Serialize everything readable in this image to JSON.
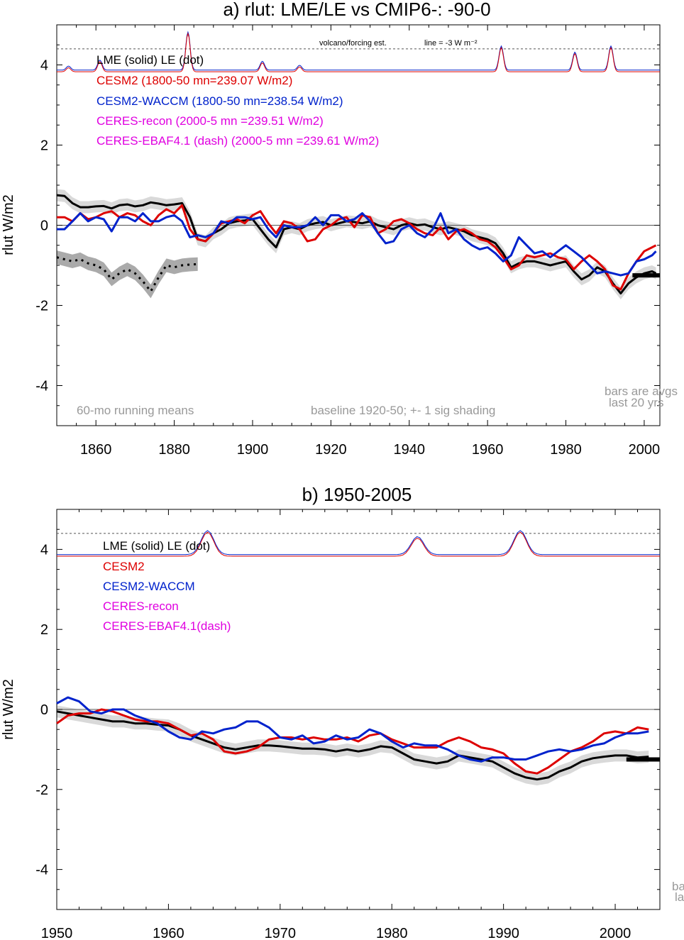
{
  "colors": {
    "lme": "#000000",
    "cesm2": "#dd0000",
    "waccm": "#0022cc",
    "ceres": "#e000e0",
    "shade": "#d9d9d9",
    "note": "#999999"
  },
  "chart_data": [
    {
      "type": "line",
      "title": "a) rlut: LME/LE vs CMIP6-: -90-0",
      "ylabel": "rlut W/m2",
      "xlim": [
        1850,
        2004
      ],
      "ylim": [
        -5,
        5
      ],
      "xticks": [
        1860,
        1880,
        1900,
        1920,
        1940,
        1960,
        1980,
        2000
      ],
      "yticks": [
        -4,
        -2,
        0,
        2,
        4
      ],
      "annotations": {
        "volcano": "volcano/forcing est.",
        "line_ref": "line = -3 W m⁻²",
        "running": "60-mo running means",
        "baseline": "baseline 1920-50; +- 1 sig shading",
        "bars1": "bars are avgs",
        "bars2": "last 20 yrs"
      },
      "legend": {
        "lme_le": "LME (solid)   LE (dot)",
        "cesm2": "CESM2 (1800-50 mn=239.07 W/m2)",
        "waccm": "CESM2-WACCM (1800-50 mn=238.54 W/m2)",
        "ceres": "CERES-recon (2000-5 mn =239.51 W/m2)",
        "ebaf": "CERES-EBAF4.1 (dash) (2000-5 mn =239.61 W/m2)"
      },
      "dotted_ref": 4.4,
      "series": [
        {
          "name": "LME",
          "color": "lme",
          "x": [
            1850,
            1852,
            1854,
            1856,
            1858,
            1860,
            1862,
            1864,
            1866,
            1868,
            1870,
            1872,
            1874,
            1876,
            1878,
            1880,
            1882,
            1884,
            1886,
            1888,
            1890,
            1892,
            1894,
            1896,
            1898,
            1900,
            1902,
            1904,
            1906,
            1908,
            1910,
            1912,
            1914,
            1916,
            1918,
            1920,
            1922,
            1924,
            1926,
            1928,
            1930,
            1932,
            1934,
            1936,
            1938,
            1940,
            1942,
            1944,
            1946,
            1948,
            1950,
            1952,
            1954,
            1956,
            1958,
            1960,
            1962,
            1964,
            1966,
            1968,
            1970,
            1972,
            1974,
            1976,
            1978,
            1980,
            1982,
            1984,
            1986,
            1988,
            1990,
            1992,
            1994,
            1996,
            1998,
            2000,
            2002,
            2003
          ],
          "y": [
            0.75,
            0.73,
            0.55,
            0.45,
            0.45,
            0.47,
            0.48,
            0.42,
            0.5,
            0.52,
            0.47,
            0.5,
            0.57,
            0.54,
            0.5,
            0.52,
            0.55,
            0.2,
            -0.35,
            -0.4,
            -0.2,
            -0.1,
            0.05,
            0.1,
            0.12,
            0.15,
            -0.1,
            -0.35,
            -0.55,
            -0.1,
            -0.05,
            -0.1,
            0.0,
            0.05,
            0.08,
            0.0,
            0.05,
            0.1,
            0.08,
            0.05,
            0.1,
            0.0,
            -0.05,
            -0.1,
            0.0,
            0.05,
            0.0,
            0.02,
            -0.05,
            -0.1,
            -0.05,
            -0.1,
            -0.15,
            -0.25,
            -0.3,
            -0.35,
            -0.45,
            -0.7,
            -1.05,
            -0.95,
            -0.9,
            -0.9,
            -0.95,
            -1.0,
            -0.95,
            -0.9,
            -1.15,
            -1.35,
            -1.25,
            -1.05,
            -1.15,
            -1.45,
            -1.7,
            -1.45,
            -1.3,
            -1.2,
            -1.15,
            -1.2
          ]
        },
        {
          "name": "LE",
          "color": "lme",
          "dotted": true,
          "x": [
            1850,
            1852,
            1854,
            1856,
            1858,
            1860,
            1862,
            1864,
            1866,
            1868,
            1870,
            1872,
            1874,
            1876,
            1878,
            1880,
            1882,
            1884,
            1886
          ],
          "y": [
            -0.8,
            -0.85,
            -0.9,
            -0.85,
            -0.95,
            -1.0,
            -1.1,
            -1.35,
            -1.2,
            -1.1,
            -1.2,
            -1.4,
            -1.65,
            -1.3,
            -1.0,
            -1.05,
            -1.0,
            -0.98,
            -0.97
          ]
        },
        {
          "name": "CESM2",
          "color": "cesm2",
          "x": [
            1850,
            1852,
            1854,
            1856,
            1858,
            1860,
            1862,
            1864,
            1866,
            1868,
            1870,
            1872,
            1874,
            1876,
            1878,
            1880,
            1882,
            1884,
            1886,
            1888,
            1890,
            1892,
            1894,
            1896,
            1898,
            1900,
            1902,
            1904,
            1906,
            1908,
            1910,
            1912,
            1914,
            1916,
            1918,
            1920,
            1922,
            1924,
            1926,
            1928,
            1930,
            1932,
            1934,
            1936,
            1938,
            1940,
            1942,
            1944,
            1946,
            1948,
            1950,
            1952,
            1954,
            1956,
            1958,
            1960,
            1962,
            1964,
            1966,
            1968,
            1970,
            1972,
            1974,
            1976,
            1978,
            1980,
            1982,
            1984,
            1986,
            1988,
            1990,
            1992,
            1994,
            1996,
            1998,
            2000,
            2002,
            2003
          ],
          "y": [
            0.2,
            0.2,
            0.1,
            0.3,
            0.15,
            0.2,
            0.3,
            0.35,
            0.2,
            0.3,
            0.25,
            0.1,
            0.0,
            0.25,
            0.4,
            0.3,
            0.5,
            -0.1,
            -0.35,
            -0.4,
            -0.2,
            0.05,
            0.1,
            0.15,
            0.05,
            0.25,
            0.35,
            0.05,
            -0.2,
            0.1,
            0.05,
            -0.1,
            -0.4,
            -0.35,
            -0.1,
            0.0,
            0.15,
            0.2,
            -0.05,
            0.25,
            0.2,
            -0.2,
            -0.1,
            0.1,
            0.15,
            0.05,
            -0.1,
            -0.2,
            -0.25,
            -0.05,
            -0.35,
            -0.15,
            -0.1,
            -0.2,
            -0.35,
            -0.4,
            -0.55,
            -0.8,
            -1.1,
            -1.0,
            -0.75,
            -0.8,
            -0.75,
            -0.7,
            -0.8,
            -0.85,
            -1.1,
            -0.9,
            -0.75,
            -0.9,
            -1.1,
            -1.5,
            -1.6,
            -1.2,
            -0.9,
            -0.65,
            -0.55,
            -0.5
          ]
        },
        {
          "name": "CESM2-WACCM",
          "color": "waccm",
          "x": [
            1850,
            1852,
            1854,
            1856,
            1858,
            1860,
            1862,
            1864,
            1866,
            1868,
            1870,
            1872,
            1874,
            1876,
            1878,
            1880,
            1882,
            1884,
            1886,
            1888,
            1890,
            1892,
            1894,
            1896,
            1898,
            1900,
            1902,
            1904,
            1906,
            1908,
            1910,
            1912,
            1914,
            1916,
            1918,
            1920,
            1922,
            1924,
            1926,
            1928,
            1930,
            1932,
            1934,
            1936,
            1938,
            1940,
            1942,
            1944,
            1946,
            1948,
            1950,
            1952,
            1954,
            1956,
            1958,
            1960,
            1962,
            1964,
            1966,
            1968,
            1970,
            1972,
            1974,
            1976,
            1978,
            1980,
            1982,
            1984,
            1986,
            1988,
            1990,
            1992,
            1994,
            1996,
            1998,
            2000,
            2002,
            2003
          ],
          "y": [
            -0.1,
            -0.1,
            0.1,
            0.3,
            0.1,
            0.2,
            0.15,
            -0.15,
            0.2,
            0.2,
            0.1,
            0.3,
            0.1,
            0.1,
            0.2,
            0.25,
            0.1,
            -0.3,
            -0.25,
            -0.3,
            -0.2,
            0.1,
            0.05,
            0.2,
            0.2,
            0.15,
            0.2,
            -0.1,
            -0.3,
            0.0,
            -0.05,
            -0.05,
            0.0,
            0.2,
            0.0,
            0.25,
            0.25,
            0.1,
            0.15,
            0.3,
            0.1,
            -0.2,
            -0.45,
            -0.4,
            -0.1,
            0.0,
            -0.2,
            -0.3,
            -0.1,
            0.3,
            -0.2,
            -0.1,
            -0.35,
            -0.5,
            -0.6,
            -0.55,
            -0.7,
            -0.9,
            -0.75,
            -0.3,
            -0.5,
            -0.7,
            -0.65,
            -0.8,
            -0.65,
            -0.5,
            -0.65,
            -0.8,
            -1.0,
            -1.2,
            -1.15,
            -1.2,
            -1.25,
            -1.2,
            -0.9,
            -0.85,
            -0.75,
            -0.65
          ]
        }
      ],
      "bars": [
        {
          "color": "lme",
          "x0": 1997,
          "x1": 2004,
          "y": -1.25
        }
      ]
    },
    {
      "type": "line",
      "title": "b) 1950-2005",
      "ylabel": "rlut W/m2",
      "xlim": [
        1950,
        2004
      ],
      "ylim": [
        -5,
        5
      ],
      "xticks": [
        1950,
        1960,
        1970,
        1980,
        1990,
        2000
      ],
      "yticks": [
        -4,
        -2,
        0,
        2,
        4
      ],
      "annotations": {
        "bars1": "ba",
        "bars2": "la"
      },
      "legend": {
        "lme_le": "LME (solid)      LE (dot)",
        "cesm2": "CESM2",
        "waccm": "CESM2-WACCM",
        "ceres": "CERES-recon",
        "ebaf": "CERES-EBAF4.1(dash)"
      },
      "dotted_ref": 4.4,
      "series": [
        {
          "name": "LME",
          "color": "lme",
          "x": [
            1950,
            1951,
            1952,
            1953,
            1954,
            1955,
            1956,
            1957,
            1958,
            1959,
            1960,
            1961,
            1962,
            1963,
            1964,
            1965,
            1966,
            1967,
            1968,
            1969,
            1970,
            1971,
            1972,
            1973,
            1974,
            1975,
            1976,
            1977,
            1978,
            1979,
            1980,
            1981,
            1982,
            1983,
            1984,
            1985,
            1986,
            1987,
            1988,
            1989,
            1990,
            1991,
            1992,
            1993,
            1994,
            1995,
            1996,
            1997,
            1998,
            1999,
            2000,
            2001,
            2002,
            2003
          ],
          "y": [
            -0.05,
            -0.1,
            -0.15,
            -0.2,
            -0.25,
            -0.3,
            -0.3,
            -0.35,
            -0.35,
            -0.38,
            -0.4,
            -0.5,
            -0.65,
            -0.75,
            -0.85,
            -0.95,
            -1.0,
            -0.95,
            -0.9,
            -0.9,
            -0.92,
            -0.95,
            -0.98,
            -0.98,
            -1.0,
            -1.05,
            -1.0,
            -1.05,
            -1.0,
            -0.92,
            -0.95,
            -1.1,
            -1.25,
            -1.3,
            -1.35,
            -1.3,
            -1.15,
            -1.2,
            -1.25,
            -1.3,
            -1.45,
            -1.6,
            -1.7,
            -1.75,
            -1.7,
            -1.55,
            -1.45,
            -1.3,
            -1.22,
            -1.18,
            -1.15,
            -1.15,
            -1.2,
            -1.18
          ]
        },
        {
          "name": "CESM2",
          "color": "cesm2",
          "x": [
            1950,
            1951,
            1952,
            1953,
            1954,
            1955,
            1956,
            1957,
            1958,
            1959,
            1960,
            1961,
            1962,
            1963,
            1964,
            1965,
            1966,
            1967,
            1968,
            1969,
            1970,
            1971,
            1972,
            1973,
            1974,
            1975,
            1976,
            1977,
            1978,
            1979,
            1980,
            1981,
            1982,
            1983,
            1984,
            1985,
            1986,
            1987,
            1988,
            1989,
            1990,
            1991,
            1992,
            1993,
            1994,
            1995,
            1996,
            1997,
            1998,
            1999,
            2000,
            2001,
            2002,
            2003
          ],
          "y": [
            -0.35,
            -0.15,
            -0.1,
            -0.1,
            0.0,
            -0.05,
            -0.15,
            -0.25,
            -0.3,
            -0.3,
            -0.35,
            -0.5,
            -0.65,
            -0.6,
            -0.75,
            -1.05,
            -1.1,
            -1.05,
            -0.95,
            -0.75,
            -0.7,
            -0.7,
            -0.75,
            -0.7,
            -0.75,
            -0.75,
            -0.7,
            -0.8,
            -0.65,
            -0.6,
            -0.75,
            -0.85,
            -0.95,
            -0.95,
            -0.95,
            -0.8,
            -0.7,
            -0.8,
            -0.95,
            -1.0,
            -1.1,
            -1.35,
            -1.55,
            -1.6,
            -1.45,
            -1.25,
            -1.05,
            -0.95,
            -0.8,
            -0.6,
            -0.55,
            -0.6,
            -0.45,
            -0.5
          ]
        },
        {
          "name": "CESM2-WACCM",
          "color": "waccm",
          "x": [
            1950,
            1951,
            1952,
            1953,
            1954,
            1955,
            1956,
            1957,
            1958,
            1959,
            1960,
            1961,
            1962,
            1963,
            1964,
            1965,
            1966,
            1967,
            1968,
            1969,
            1970,
            1971,
            1972,
            1973,
            1974,
            1975,
            1976,
            1977,
            1978,
            1979,
            1980,
            1981,
            1982,
            1983,
            1984,
            1985,
            1986,
            1987,
            1988,
            1989,
            1990,
            1991,
            1992,
            1993,
            1994,
            1995,
            1996,
            1997,
            1998,
            1999,
            2000,
            2001,
            2002,
            2003
          ],
          "y": [
            0.15,
            0.3,
            0.2,
            -0.05,
            -0.1,
            0.0,
            0.0,
            -0.15,
            -0.25,
            -0.35,
            -0.55,
            -0.7,
            -0.75,
            -0.55,
            -0.6,
            -0.5,
            -0.45,
            -0.3,
            -0.3,
            -0.45,
            -0.7,
            -0.75,
            -0.65,
            -0.85,
            -0.8,
            -0.65,
            -0.75,
            -0.7,
            -0.5,
            -0.6,
            -0.8,
            -0.95,
            -0.85,
            -0.9,
            -0.9,
            -1.0,
            -1.15,
            -1.25,
            -1.3,
            -1.2,
            -1.2,
            -1.25,
            -1.25,
            -1.15,
            -1.05,
            -1.0,
            -1.05,
            -1.0,
            -0.9,
            -0.85,
            -0.7,
            -0.6,
            -0.6,
            -0.55
          ]
        }
      ],
      "bars": [
        {
          "color": "lme",
          "x0": 2001,
          "x1": 2004,
          "y": -1.25
        }
      ]
    }
  ]
}
